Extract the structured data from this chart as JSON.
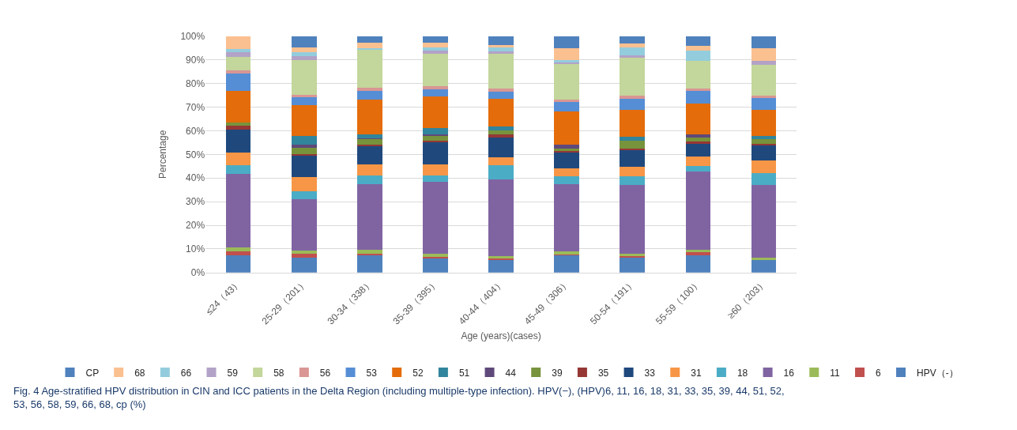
{
  "chart_data": {
    "type": "bar",
    "stacked": true,
    "xlabel": "Age (years)(cases)",
    "ylabel": "Percentage",
    "categories": [
      "≤24（43）",
      "25-29（201）",
      "30-34（338）",
      "35-39（395）",
      "40-44（404）",
      "45-49（306）",
      "50-54（191）",
      "55-59（100）",
      "≥60（203）"
    ],
    "series": [
      {
        "name": "HPV（-）",
        "color": "#4f81bd",
        "values": [
          7.4,
          6.3,
          7.5,
          6.2,
          5.5,
          7.4,
          6.5,
          7.2,
          5.3
        ]
      },
      {
        "name": "6",
        "color": "#c0504d",
        "values": [
          1.7,
          1.5,
          0.4,
          0.5,
          0.6,
          0.3,
          0.5,
          1.4,
          0
        ]
      },
      {
        "name": "11",
        "color": "#9bbb59",
        "values": [
          1.6,
          1.4,
          1.6,
          1.1,
          0.9,
          1.1,
          1.1,
          1.1,
          1.1
        ]
      },
      {
        "name": "16",
        "color": "#8064a2",
        "values": [
          31.1,
          21.8,
          27.8,
          30.6,
          32.4,
          28.5,
          28.9,
          33.0,
          30.5
        ]
      },
      {
        "name": "18",
        "color": "#4bacc6",
        "values": [
          3.6,
          3.3,
          3.9,
          2.7,
          6.0,
          3.6,
          3.8,
          2.4,
          5.1
        ]
      },
      {
        "name": "31",
        "color": "#f79646",
        "values": [
          5.5,
          6.2,
          4.4,
          4.6,
          3.3,
          3.1,
          4.1,
          4.1,
          5.3
        ]
      },
      {
        "name": "33",
        "color": "#1f497d",
        "values": [
          9.5,
          9.2,
          8.1,
          9.7,
          8.5,
          7.1,
          7.1,
          5.2,
          6.6
        ]
      },
      {
        "name": "35",
        "color": "#953735",
        "values": [
          1.6,
          0.5,
          0.5,
          0.5,
          1.3,
          0.4,
          0.5,
          1.1,
          0.5
        ]
      },
      {
        "name": "39",
        "color": "#77933c",
        "values": [
          1.4,
          2.7,
          2.4,
          2.2,
          1.8,
          1.1,
          3.3,
          1.6,
          1.9
        ]
      },
      {
        "name": "44",
        "color": "#5f497a",
        "values": [
          0,
          1.1,
          0.3,
          0.3,
          0,
          1.6,
          0,
          1.4,
          0
        ]
      },
      {
        "name": "51",
        "color": "#31859c",
        "values": [
          0,
          3.9,
          1.6,
          2.7,
          1.6,
          0,
          1.6,
          0,
          1.5
        ]
      },
      {
        "name": "52",
        "color": "#e46c0a",
        "values": [
          13.3,
          13.1,
          14.7,
          13.4,
          11.5,
          14.0,
          11.4,
          12.9,
          11.0
        ]
      },
      {
        "name": "53",
        "color": "#558ed5",
        "values": [
          7.4,
          3.3,
          3.6,
          2.9,
          3.0,
          4.1,
          4.7,
          5.5,
          4.9
        ]
      },
      {
        "name": "56",
        "color": "#d99694",
        "values": [
          1.5,
          0.8,
          1.3,
          1.6,
          1.6,
          0.9,
          1.3,
          1.1,
          1.1
        ]
      },
      {
        "name": "58",
        "color": "#c3d69b",
        "values": [
          5.5,
          14.9,
          16.0,
          13.5,
          14.5,
          14.9,
          16.0,
          11.5,
          13.1
        ]
      },
      {
        "name": "59",
        "color": "#b3a2c7",
        "values": [
          2.0,
          1.6,
          0,
          1.4,
          1.1,
          0.7,
          1.1,
          0,
          1.6
        ]
      },
      {
        "name": "66",
        "color": "#93cddd",
        "values": [
          1.5,
          1.8,
          0.9,
          1.3,
          1.6,
          1.1,
          3.5,
          4.4,
          0
        ]
      },
      {
        "name": "68",
        "color": "#fac090",
        "values": [
          5.4,
          1.8,
          2.4,
          2.2,
          1.1,
          4.9,
          1.4,
          2.0,
          5.3
        ]
      },
      {
        "name": "CP",
        "color": "#4f81bd",
        "values": [
          0,
          4.8,
          2.6,
          2.6,
          3.7,
          5.2,
          3.2,
          4.1,
          5.2
        ]
      }
    ],
    "ylim": [
      0,
      100
    ],
    "yticks": [
      {
        "value": 0,
        "label": "0%"
      },
      {
        "value": 10,
        "label": "10%"
      },
      {
        "value": 20,
        "label": "20%"
      },
      {
        "value": 30,
        "label": "30%"
      },
      {
        "value": 40,
        "label": "40%"
      },
      {
        "value": 50,
        "label": "50%"
      },
      {
        "value": 60,
        "label": "60%"
      },
      {
        "value": 70,
        "label": "70%"
      },
      {
        "value": 80,
        "label": "80%"
      },
      {
        "value": 90,
        "label": "90%"
      },
      {
        "value": 100,
        "label": "100%"
      }
    ],
    "grid": "y",
    "legend": "bottom",
    "annotations": [
      "Fig. 4 Age-stratified HPV distribution in CIN and ICC patients in the Delta Region (including multiple-type infection). HPV(−), (HPV)6, 11, 16, 18, 31, 33, 35, 39, 44, 51, 52, 53, 56, 58, 59, 66, 68, cp (%)"
    ]
  }
}
